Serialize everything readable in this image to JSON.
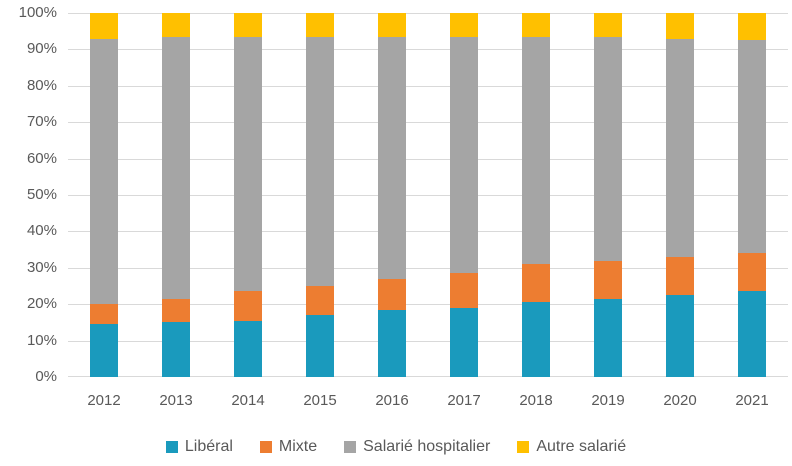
{
  "chart_data": {
    "type": "bar",
    "stacked": true,
    "percent_stacked": true,
    "title": "",
    "xlabel": "",
    "ylabel": "",
    "categories": [
      "2012",
      "2013",
      "2014",
      "2015",
      "2016",
      "2017",
      "2018",
      "2019",
      "2020",
      "2021"
    ],
    "series": [
      {
        "id": "liberal",
        "name": "Libéral",
        "color": "#1A9ABD",
        "values": [
          14.5,
          15,
          15.5,
          17,
          18.5,
          19,
          20.5,
          21.5,
          22.5,
          23.5
        ]
      },
      {
        "id": "mixte",
        "name": "Mixte",
        "color": "#ED7D31",
        "values": [
          5.5,
          6.5,
          8,
          8,
          8.5,
          9.5,
          10.5,
          10.5,
          10.5,
          10.5
        ]
      },
      {
        "id": "salarie-hospitalier",
        "name": "Salarié hospitalier",
        "color": "#A5A5A5",
        "values": [
          73,
          72,
          70,
          68.5,
          66.5,
          65,
          62.5,
          61.5,
          60,
          58.5
        ]
      },
      {
        "id": "autre-salarie",
        "name": "Autre salarié",
        "color": "#FFC000",
        "values": [
          7,
          6.5,
          6.5,
          6.5,
          6.5,
          6.5,
          6.5,
          6.5,
          7,
          7.5
        ]
      }
    ],
    "y_ticks": [
      "0%",
      "10%",
      "20%",
      "30%",
      "40%",
      "50%",
      "60%",
      "70%",
      "80%",
      "90%",
      "100%"
    ],
    "ylim": [
      0,
      100
    ],
    "grid": true,
    "gridline_color": "#d9d9d9",
    "axis_label_color": "#595959",
    "legend_position": "bottom"
  }
}
